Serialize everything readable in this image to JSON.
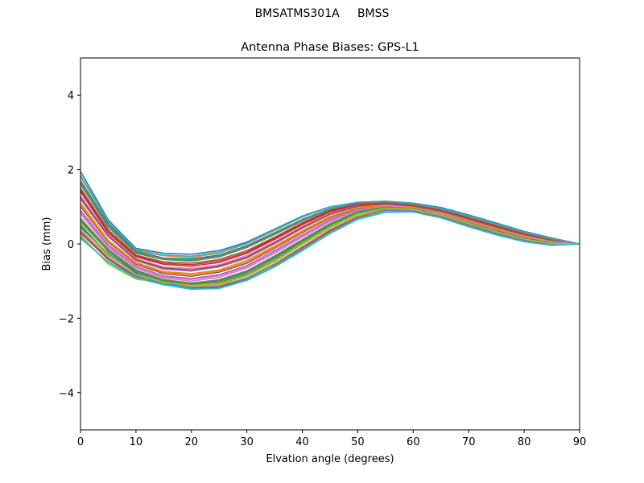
{
  "figure": {
    "suptitle": "BMSATMS301A     BMSS"
  },
  "chart_data": {
    "type": "line",
    "title": "Antenna Phase Biases: GPS-L1",
    "xlabel": "Elvation angle (degrees)",
    "ylabel": "Bias (mm)",
    "xlim": [
      0,
      90
    ],
    "ylim": [
      -5,
      5
    ],
    "xticks": [
      0,
      10,
      20,
      30,
      40,
      50,
      60,
      70,
      80,
      90
    ],
    "yticks": [
      -4,
      -2,
      0,
      2,
      4
    ],
    "xtick_labels": [
      "0",
      "10",
      "20",
      "30",
      "40",
      "50",
      "60",
      "70",
      "80",
      "90"
    ],
    "ytick_labels": [
      "−4",
      "−2",
      "0",
      "2",
      "4"
    ],
    "grid": false,
    "legend": "none",
    "palette": [
      "#1f77b4",
      "#ff7f0e",
      "#2ca02c",
      "#d62728",
      "#9467bd",
      "#8c564b",
      "#e377c2",
      "#7f7f7f",
      "#bcbd22",
      "#17becf"
    ],
    "x": [
      0,
      5,
      10,
      15,
      20,
      25,
      30,
      35,
      40,
      45,
      50,
      55,
      60,
      65,
      70,
      75,
      80,
      85,
      90
    ],
    "series": [
      {
        "values": [
          1.95,
          0.65,
          -0.12,
          -0.25,
          -0.28,
          -0.18,
          0.05,
          0.4,
          0.75,
          1.0,
          1.12,
          1.15,
          1.1,
          0.98,
          0.78,
          0.56,
          0.34,
          0.16,
          0.0
        ]
      },
      {
        "values": [
          1.8,
          0.6,
          -0.18,
          -0.32,
          -0.36,
          -0.25,
          0.0,
          0.36,
          0.72,
          0.99,
          1.12,
          1.14,
          1.08,
          0.95,
          0.75,
          0.53,
          0.32,
          0.14,
          0.0
        ]
      },
      {
        "values": [
          1.6,
          0.45,
          -0.25,
          -0.42,
          -0.46,
          -0.35,
          -0.1,
          0.25,
          0.62,
          0.93,
          1.1,
          1.12,
          1.06,
          0.92,
          0.72,
          0.5,
          0.29,
          0.12,
          0.0
        ]
      },
      {
        "values": [
          1.4,
          0.3,
          -0.35,
          -0.55,
          -0.6,
          -0.5,
          -0.25,
          0.12,
          0.52,
          0.86,
          1.05,
          1.1,
          1.04,
          0.9,
          0.7,
          0.48,
          0.28,
          0.11,
          0.0
        ]
      },
      {
        "values": [
          1.2,
          0.2,
          -0.45,
          -0.68,
          -0.73,
          -0.62,
          -0.38,
          0.0,
          0.42,
          0.79,
          1.01,
          1.08,
          1.02,
          0.88,
          0.67,
          0.45,
          0.25,
          0.1,
          0.0
        ]
      },
      {
        "values": [
          1.0,
          0.05,
          -0.55,
          -0.8,
          -0.87,
          -0.76,
          -0.52,
          -0.12,
          0.3,
          0.7,
          0.96,
          1.05,
          1.0,
          0.85,
          0.63,
          0.42,
          0.22,
          0.08,
          0.0
        ]
      },
      {
        "values": [
          0.8,
          -0.1,
          -0.65,
          -0.92,
          -1.0,
          -0.9,
          -0.65,
          -0.25,
          0.18,
          0.6,
          0.9,
          1.02,
          0.98,
          0.82,
          0.6,
          0.38,
          0.18,
          0.05,
          0.0
        ]
      },
      {
        "values": [
          0.6,
          -0.2,
          -0.75,
          -1.0,
          -1.1,
          -1.02,
          -0.78,
          -0.38,
          0.06,
          0.5,
          0.84,
          0.98,
          0.95,
          0.79,
          0.56,
          0.34,
          0.14,
          0.02,
          0.0
        ]
      },
      {
        "values": [
          0.4,
          -0.35,
          -0.85,
          -1.05,
          -1.18,
          -1.12,
          -0.9,
          -0.52,
          -0.06,
          0.4,
          0.76,
          0.93,
          0.91,
          0.75,
          0.51,
          0.29,
          0.1,
          -0.01,
          0.0
        ]
      },
      {
        "values": [
          0.2,
          -0.5,
          -0.92,
          -1.1,
          -1.22,
          -1.2,
          -0.98,
          -0.62,
          -0.18,
          0.28,
          0.66,
          0.85,
          0.86,
          0.7,
          0.46,
          0.24,
          0.06,
          -0.04,
          0.0
        ]
      },
      {
        "values": [
          1.7,
          0.55,
          -0.2,
          -0.38,
          -0.4,
          -0.3,
          -0.05,
          0.3,
          0.66,
          0.95,
          1.1,
          1.13,
          1.07,
          0.93,
          0.74,
          0.52,
          0.31,
          0.13,
          0.0
        ]
      },
      {
        "values": [
          1.1,
          0.1,
          -0.5,
          -0.74,
          -0.8,
          -0.7,
          -0.44,
          -0.06,
          0.36,
          0.74,
          0.98,
          1.06,
          1.01,
          0.86,
          0.65,
          0.43,
          0.23,
          0.09,
          0.0
        ]
      },
      {
        "values": [
          0.5,
          -0.3,
          -0.8,
          -1.02,
          -1.14,
          -1.08,
          -0.85,
          -0.46,
          0.0,
          0.45,
          0.8,
          0.95,
          0.93,
          0.77,
          0.54,
          0.32,
          0.12,
          0.0,
          0.0
        ]
      },
      {
        "values": [
          0.3,
          -0.42,
          -0.88,
          -1.08,
          -1.2,
          -1.16,
          -0.95,
          -0.58,
          -0.12,
          0.34,
          0.71,
          0.89,
          0.88,
          0.72,
          0.48,
          0.26,
          0.08,
          -0.03,
          0.0
        ]
      },
      {
        "values": [
          0.9,
          -0.02,
          -0.6,
          -0.86,
          -0.93,
          -0.83,
          -0.58,
          -0.18,
          0.24,
          0.65,
          0.93,
          1.03,
          0.99,
          0.83,
          0.61,
          0.4,
          0.2,
          0.06,
          0.0
        ]
      },
      {
        "values": [
          1.5,
          0.38,
          -0.3,
          -0.48,
          -0.52,
          -0.42,
          -0.18,
          0.18,
          0.57,
          0.9,
          1.08,
          1.11,
          1.05,
          0.91,
          0.71,
          0.49,
          0.28,
          0.12,
          0.0
        ]
      },
      {
        "values": [
          1.3,
          0.25,
          -0.4,
          -0.62,
          -0.66,
          -0.56,
          -0.31,
          0.06,
          0.47,
          0.82,
          1.03,
          1.09,
          1.03,
          0.89,
          0.68,
          0.46,
          0.26,
          0.1,
          0.0
        ]
      },
      {
        "values": [
          0.7,
          -0.15,
          -0.7,
          -0.96,
          -1.05,
          -0.96,
          -0.72,
          -0.32,
          0.12,
          0.55,
          0.87,
          1.0,
          0.96,
          0.8,
          0.58,
          0.36,
          0.16,
          0.04,
          0.0
        ]
      },
      {
        "values": [
          0.25,
          -0.55,
          -0.95,
          -1.05,
          -1.15,
          -1.1,
          -0.92,
          -0.6,
          -0.15,
          0.3,
          0.68,
          0.88,
          0.87,
          0.71,
          0.47,
          0.25,
          0.07,
          -0.03,
          0.0
        ]
      },
      {
        "values": [
          1.85,
          0.62,
          -0.15,
          -0.3,
          -0.33,
          -0.22,
          0.02,
          0.38,
          0.73,
          0.99,
          1.12,
          1.15,
          1.09,
          0.96,
          0.76,
          0.54,
          0.33,
          0.15,
          0.0
        ]
      },
      {
        "values": [
          0.45,
          -0.25,
          -0.78,
          -1.05,
          -1.12,
          -1.05,
          -0.82,
          -0.42,
          0.03,
          0.48,
          0.82,
          0.96,
          0.94,
          0.78,
          0.55,
          0.33,
          0.13,
          0.01,
          0.0
        ]
      },
      {
        "values": [
          1.05,
          0.08,
          -0.52,
          -0.77,
          -0.83,
          -0.73,
          -0.48,
          -0.09,
          0.33,
          0.72,
          0.97,
          1.05,
          1.0,
          0.86,
          0.64,
          0.42,
          0.22,
          0.08,
          0.0
        ]
      },
      {
        "values": [
          0.65,
          -0.18,
          -0.72,
          -0.98,
          -1.08,
          -0.99,
          -0.75,
          -0.35,
          0.09,
          0.52,
          0.85,
          0.99,
          0.95,
          0.8,
          0.57,
          0.35,
          0.15,
          0.03,
          0.0
        ]
      },
      {
        "values": [
          1.45,
          0.33,
          -0.33,
          -0.52,
          -0.56,
          -0.46,
          -0.22,
          0.15,
          0.55,
          0.88,
          1.06,
          1.1,
          1.04,
          0.9,
          0.7,
          0.48,
          0.27,
          0.11,
          0.0
        ]
      },
      {
        "values": [
          0.35,
          -0.38,
          -0.86,
          -1.07,
          -1.17,
          -1.14,
          -0.93,
          -0.55,
          -0.09,
          0.37,
          0.73,
          0.91,
          0.89,
          0.73,
          0.5,
          0.28,
          0.09,
          -0.02,
          0.0
        ]
      },
      {
        "values": [
          1.25,
          0.22,
          -0.42,
          -0.65,
          -0.7,
          -0.59,
          -0.35,
          0.03,
          0.45,
          0.8,
          1.02,
          1.08,
          1.02,
          0.88,
          0.67,
          0.45,
          0.25,
          0.1,
          0.0
        ]
      },
      {
        "values": [
          0.85,
          -0.06,
          -0.62,
          -0.89,
          -0.96,
          -0.86,
          -0.62,
          -0.22,
          0.21,
          0.62,
          0.91,
          1.02,
          0.98,
          0.82,
          0.6,
          0.39,
          0.19,
          0.06,
          0.0
        ]
      },
      {
        "values": [
          1.65,
          0.5,
          -0.22,
          -0.4,
          -0.43,
          -0.33,
          -0.08,
          0.28,
          0.64,
          0.94,
          1.1,
          1.13,
          1.07,
          0.93,
          0.73,
          0.51,
          0.3,
          0.13,
          0.0
        ]
      },
      {
        "values": [
          0.55,
          -0.28,
          -0.82,
          -1.03,
          -1.12,
          -1.06,
          -0.84,
          -0.44,
          0.02,
          0.47,
          0.81,
          0.96,
          0.93,
          0.78,
          0.55,
          0.33,
          0.13,
          0.01,
          0.0
        ]
      },
      {
        "values": [
          0.15,
          -0.48,
          -0.9,
          -1.08,
          -1.21,
          -1.19,
          -0.97,
          -0.61,
          -0.16,
          0.29,
          0.67,
          0.86,
          0.86,
          0.7,
          0.46,
          0.24,
          0.06,
          -0.04,
          0.0
        ]
      }
    ]
  }
}
